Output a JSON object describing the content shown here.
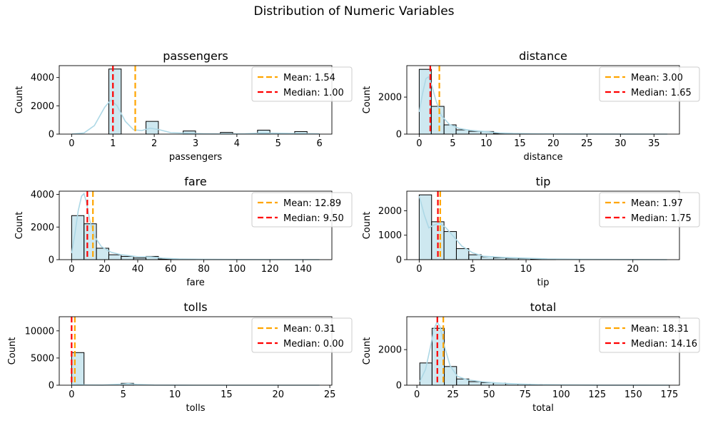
{
  "figure": {
    "title": "Distribution of Numeric Variables",
    "bar_fill": "#add8e6",
    "kde_color": "#add8e6",
    "mean_color": "#ffa500",
    "median_color": "#ff0000"
  },
  "chart_data": [
    {
      "type": "histogram",
      "title": "passengers",
      "xlabel": "passengers",
      "ylabel": "Count",
      "xlim": [
        -0.3,
        6.3
      ],
      "ylim": [
        0,
        4840
      ],
      "xticks": [
        0,
        1,
        2,
        3,
        4,
        5,
        6
      ],
      "xticklabels": [
        "0",
        "1",
        "2",
        "3",
        "4",
        "5",
        "6"
      ],
      "yticks": [
        0,
        2000,
        4000
      ],
      "yticklabels": [
        "0",
        "2000",
        "4000"
      ],
      "bins": [
        [
          0.9,
          1.2,
          4600
        ],
        [
          1.8,
          2.1,
          900
        ],
        [
          2.7,
          3.0,
          220
        ],
        [
          3.6,
          3.9,
          120
        ],
        [
          4.5,
          4.8,
          280
        ],
        [
          5.4,
          5.7,
          180
        ]
      ],
      "kde": [
        [
          0,
          5
        ],
        [
          0.3,
          80
        ],
        [
          0.55,
          600
        ],
        [
          0.8,
          1900
        ],
        [
          0.95,
          2400
        ],
        [
          1.1,
          2000
        ],
        [
          1.3,
          900
        ],
        [
          1.5,
          300
        ],
        [
          1.7,
          250
        ],
        [
          1.9,
          420
        ],
        [
          2.1,
          330
        ],
        [
          2.4,
          100
        ],
        [
          2.8,
          60
        ],
        [
          3.2,
          25
        ],
        [
          3.6,
          15
        ],
        [
          4.2,
          20
        ],
        [
          4.6,
          70
        ],
        [
          5.0,
          60
        ],
        [
          5.4,
          40
        ],
        [
          5.8,
          30
        ],
        [
          6.0,
          20
        ]
      ],
      "mean": 1.54,
      "median": 1.0,
      "mean_label": "Mean: 1.54",
      "median_label": "Median: 1.00"
    },
    {
      "type": "histogram",
      "title": "distance",
      "xlabel": "distance",
      "ylabel": "Count",
      "xlim": [
        -1.85,
        38.8
      ],
      "ylim": [
        0,
        3700
      ],
      "xticks": [
        0,
        5,
        10,
        15,
        20,
        25,
        30,
        35
      ],
      "xticklabels": [
        "0",
        "5",
        "10",
        "15",
        "20",
        "25",
        "30",
        "35"
      ],
      "yticks": [
        0,
        2000
      ],
      "yticklabels": [
        "0",
        "2000"
      ],
      "bins": [
        [
          0,
          1.8,
          3500
        ],
        [
          1.8,
          3.7,
          1500
        ],
        [
          3.7,
          5.5,
          500
        ],
        [
          5.5,
          7.4,
          230
        ],
        [
          7.4,
          9.2,
          150
        ],
        [
          9.2,
          11.1,
          140
        ],
        [
          11.1,
          12.9,
          30
        ],
        [
          12.9,
          14.8,
          20
        ],
        [
          14.8,
          16.6,
          15
        ],
        [
          16.6,
          18.5,
          10
        ]
      ],
      "kde": [
        [
          0,
          1200
        ],
        [
          0.5,
          2200
        ],
        [
          1.0,
          3000
        ],
        [
          1.4,
          3100
        ],
        [
          1.9,
          2600
        ],
        [
          2.5,
          1800
        ],
        [
          3.3,
          1000
        ],
        [
          4.5,
          520
        ],
        [
          6,
          300
        ],
        [
          7.5,
          210
        ],
        [
          9,
          160
        ],
        [
          10.5,
          120
        ],
        [
          12,
          60
        ],
        [
          14,
          35
        ],
        [
          17,
          20
        ],
        [
          20,
          10
        ],
        [
          25,
          6
        ],
        [
          30,
          3
        ],
        [
          37,
          0
        ]
      ],
      "mean": 3.0,
      "median": 1.65,
      "mean_label": "Mean: 3.00",
      "median_label": "Median: 1.65"
    },
    {
      "type": "histogram",
      "title": "fare",
      "xlabel": "fare",
      "ylabel": "Count",
      "xlim": [
        -7.5,
        157.5
      ],
      "ylim": [
        0,
        4200
      ],
      "xticks": [
        0,
        20,
        40,
        60,
        80,
        100,
        120,
        140
      ],
      "xticklabels": [
        "0",
        "20",
        "40",
        "60",
        "80",
        "100",
        "120",
        "140"
      ],
      "yticks": [
        0,
        2000,
        4000
      ],
      "yticklabels": [
        "0",
        "2000",
        "4000"
      ],
      "bins": [
        [
          0,
          7.5,
          2700
        ],
        [
          7.5,
          15,
          2200
        ],
        [
          15,
          22.5,
          700
        ],
        [
          22.5,
          30,
          300
        ],
        [
          30,
          37.5,
          200
        ],
        [
          37.5,
          45,
          100
        ],
        [
          45,
          52.5,
          200
        ],
        [
          52.5,
          60,
          40
        ],
        [
          60,
          67.5,
          20
        ],
        [
          67.5,
          75,
          10
        ]
      ],
      "kde": [
        [
          0,
          400
        ],
        [
          2,
          1600
        ],
        [
          4,
          3000
        ],
        [
          6,
          3900
        ],
        [
          7.5,
          4050
        ],
        [
          9,
          3500
        ],
        [
          11,
          2400
        ],
        [
          14,
          1400
        ],
        [
          18,
          800
        ],
        [
          24,
          450
        ],
        [
          30,
          300
        ],
        [
          40,
          180
        ],
        [
          48,
          170
        ],
        [
          55,
          90
        ],
        [
          65,
          40
        ],
        [
          80,
          20
        ],
        [
          100,
          10
        ],
        [
          150,
          0
        ]
      ],
      "mean": 12.89,
      "median": 9.5,
      "mean_label": "Mean: 12.89",
      "median_label": "Median: 9.50"
    },
    {
      "type": "histogram",
      "title": "tip",
      "xlabel": "tip",
      "ylabel": "Count",
      "xlim": [
        -1.16,
        24.36
      ],
      "ylim": [
        0,
        2800
      ],
      "xticks": [
        0,
        5,
        10,
        15,
        20
      ],
      "xticklabels": [
        "0",
        "5",
        "10",
        "15",
        "20"
      ],
      "yticks": [
        0,
        1000,
        2000
      ],
      "yticklabels": [
        "0",
        "1000",
        "2000"
      ],
      "bins": [
        [
          0,
          1.16,
          2650
        ],
        [
          1.16,
          2.32,
          1550
        ],
        [
          2.32,
          3.48,
          1150
        ],
        [
          3.48,
          4.64,
          450
        ],
        [
          4.64,
          5.8,
          200
        ],
        [
          5.8,
          6.96,
          120
        ],
        [
          6.96,
          8.12,
          80
        ],
        [
          8.12,
          9.28,
          60
        ],
        [
          9.28,
          10.44,
          50
        ],
        [
          10.44,
          11.6,
          30
        ],
        [
          11.6,
          12.76,
          15
        ]
      ],
      "kde": [
        [
          0,
          2600
        ],
        [
          0.5,
          1800
        ],
        [
          0.9,
          1300
        ],
        [
          1.3,
          1400
        ],
        [
          1.9,
          1500
        ],
        [
          2.5,
          1300
        ],
        [
          3.2,
          950
        ],
        [
          4,
          550
        ],
        [
          5,
          280
        ],
        [
          6,
          140
        ],
        [
          8,
          90
        ],
        [
          10,
          60
        ],
        [
          12,
          30
        ],
        [
          15,
          15
        ],
        [
          20,
          6
        ],
        [
          23.2,
          0
        ]
      ],
      "mean": 1.97,
      "median": 1.75,
      "mean_label": "Mean: 1.97",
      "median_label": "Median: 1.75"
    },
    {
      "type": "histogram",
      "title": "tolls",
      "xlabel": "tolls",
      "ylabel": "Count",
      "xlim": [
        -1.2,
        25.2
      ],
      "ylim": [
        0,
        12600
      ],
      "xticks": [
        0,
        5,
        10,
        15,
        20,
        25
      ],
      "xticklabels": [
        "0",
        "5",
        "10",
        "15",
        "20",
        "25"
      ],
      "yticks": [
        0,
        5000,
        10000
      ],
      "yticklabels": [
        "0",
        "5000",
        "10000"
      ],
      "bins": [
        [
          0,
          1.2,
          6000
        ],
        [
          4.8,
          6.0,
          350
        ]
      ],
      "kde": [
        [
          0,
          60
        ],
        [
          0.6,
          120
        ],
        [
          1.5,
          40
        ],
        [
          3,
          20
        ],
        [
          4.8,
          200
        ],
        [
          5.5,
          300
        ],
        [
          6.3,
          150
        ],
        [
          8,
          20
        ],
        [
          12,
          5
        ],
        [
          24,
          0
        ]
      ],
      "mean": 0.31,
      "median": 0.0,
      "mean_label": "Mean: 0.31",
      "median_label": "Median: 0.00"
    },
    {
      "type": "histogram",
      "title": "total",
      "xlabel": "total",
      "ylabel": "Count",
      "xlim": [
        -7.0,
        182.0
      ],
      "ylim": [
        0,
        3850
      ],
      "xticks": [
        0,
        25,
        50,
        75,
        100,
        125,
        150,
        175
      ],
      "xticklabels": [
        "0",
        "25",
        "50",
        "75",
        "100",
        "125",
        "150",
        "175"
      ],
      "yticks": [
        0,
        2000
      ],
      "yticklabels": [
        "0",
        "2000"
      ],
      "bins": [
        [
          2,
          10.5,
          1250
        ],
        [
          10.5,
          19,
          3200
        ],
        [
          19,
          27.5,
          1050
        ],
        [
          27.5,
          36,
          350
        ],
        [
          36,
          44.5,
          200
        ],
        [
          44.5,
          53,
          150
        ],
        [
          53,
          61.5,
          120
        ],
        [
          61.5,
          70,
          80
        ],
        [
          70,
          78.5,
          60
        ],
        [
          78.5,
          87,
          30
        ]
      ],
      "kde": [
        [
          2,
          200
        ],
        [
          6,
          900
        ],
        [
          9,
          2000
        ],
        [
          12,
          3200
        ],
        [
          14,
          3550
        ],
        [
          16,
          3300
        ],
        [
          19,
          2200
        ],
        [
          23,
          1100
        ],
        [
          28,
          500
        ],
        [
          35,
          300
        ],
        [
          45,
          200
        ],
        [
          55,
          130
        ],
        [
          70,
          70
        ],
        [
          85,
          30
        ],
        [
          100,
          15
        ],
        [
          130,
          6
        ],
        [
          175,
          0
        ]
      ],
      "mean": 18.31,
      "median": 14.16,
      "mean_label": "Mean: 18.31",
      "median_label": "Median: 14.16"
    }
  ]
}
